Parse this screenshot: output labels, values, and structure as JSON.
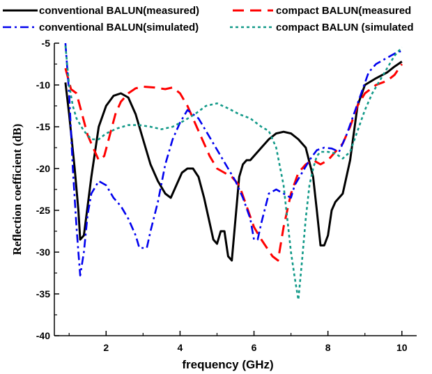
{
  "chart_data": {
    "type": "line",
    "title": "",
    "xlabel": "frequency (GHz)",
    "ylabel": "Reflection coefficient (dB)",
    "xlim": [
      0.6,
      10.4
    ],
    "ylim": [
      -40,
      -5
    ],
    "xticks": [
      2,
      4,
      6,
      8,
      10
    ],
    "yticks": [
      -5,
      -10,
      -15,
      -20,
      -25,
      -30,
      -35,
      -40
    ],
    "grid": false,
    "legend_position": "top",
    "series": [
      {
        "name": "conventional BALUN(measured)",
        "color": "#000000",
        "dash": "solid",
        "x": [
          0.9,
          1.0,
          1.15,
          1.25,
          1.3,
          1.4,
          1.6,
          1.8,
          2.0,
          2.2,
          2.4,
          2.6,
          2.8,
          3.0,
          3.2,
          3.4,
          3.6,
          3.75,
          3.9,
          4.05,
          4.2,
          4.35,
          4.5,
          4.65,
          4.8,
          4.9,
          5.0,
          5.1,
          5.2,
          5.3,
          5.4,
          5.5,
          5.6,
          5.7,
          5.8,
          5.9,
          6.0,
          6.2,
          6.4,
          6.6,
          6.8,
          7.0,
          7.2,
          7.4,
          7.6,
          7.7,
          7.8,
          7.9,
          8.0,
          8.1,
          8.2,
          8.4,
          8.6,
          8.8,
          9.0,
          9.3,
          9.6,
          9.8,
          10.0
        ],
        "y": [
          -9.7,
          -13.5,
          -20.0,
          -25.0,
          -28.5,
          -28.0,
          -21.0,
          -15.0,
          -12.5,
          -11.3,
          -11.0,
          -11.5,
          -13.5,
          -16.5,
          -19.5,
          -21.5,
          -23.0,
          -23.5,
          -22.0,
          -20.5,
          -20.0,
          -20.0,
          -21.0,
          -23.5,
          -26.5,
          -28.5,
          -29.0,
          -27.5,
          -27.5,
          -30.5,
          -31.0,
          -26.0,
          -21.0,
          -19.5,
          -19.0,
          -19.0,
          -18.5,
          -17.5,
          -16.5,
          -15.8,
          -15.6,
          -15.8,
          -16.5,
          -17.5,
          -21.0,
          -25.0,
          -29.2,
          -29.2,
          -28.0,
          -25.0,
          -24.0,
          -23.0,
          -19.0,
          -12.5,
          -10.0,
          -9.2,
          -8.5,
          -7.8,
          -7.2
        ]
      },
      {
        "name": "compact BALUN(measured",
        "color": "#ff0000",
        "dash": "long-dash",
        "x": [
          0.9,
          1.05,
          1.2,
          1.35,
          1.5,
          1.65,
          1.8,
          1.95,
          2.1,
          2.25,
          2.4,
          2.6,
          2.8,
          3.0,
          3.3,
          3.6,
          3.8,
          4.0,
          4.2,
          4.4,
          4.6,
          4.8,
          5.0,
          5.2,
          5.4,
          5.6,
          5.8,
          6.0,
          6.2,
          6.35,
          6.5,
          6.65,
          6.8,
          7.0,
          7.2,
          7.4,
          7.6,
          7.8,
          8.0,
          8.2,
          8.4,
          8.6,
          8.8,
          9.0,
          9.3,
          9.6,
          9.8,
          10.0
        ],
        "y": [
          -8.0,
          -10.5,
          -11.0,
          -13.5,
          -16.0,
          -17.5,
          -19.0,
          -18.5,
          -16.0,
          -13.5,
          -12.0,
          -11.0,
          -10.4,
          -10.2,
          -10.3,
          -10.5,
          -10.3,
          -11.0,
          -12.5,
          -14.5,
          -16.5,
          -18.5,
          -20.0,
          -20.5,
          -21.0,
          -22.0,
          -24.5,
          -27.0,
          -28.5,
          -29.5,
          -30.5,
          -31.0,
          -27.0,
          -23.0,
          -20.5,
          -19.5,
          -19.0,
          -19.5,
          -19.0,
          -18.0,
          -17.0,
          -15.0,
          -12.5,
          -11.0,
          -10.0,
          -9.5,
          -8.8,
          -7.5
        ]
      },
      {
        "name": "conventional BALUN(simulated)",
        "color": "#0000ee",
        "dash": "dash-dot",
        "x": [
          0.9,
          1.0,
          1.1,
          1.2,
          1.25,
          1.3,
          1.4,
          1.5,
          1.6,
          1.8,
          2.0,
          2.2,
          2.4,
          2.6,
          2.8,
          2.9,
          3.0,
          3.1,
          3.2,
          3.4,
          3.6,
          3.8,
          4.0,
          4.2,
          4.35,
          4.5,
          4.7,
          4.9,
          5.1,
          5.3,
          5.5,
          5.7,
          5.9,
          6.0,
          6.1,
          6.2,
          6.4,
          6.6,
          6.8,
          7.0,
          7.1,
          7.3,
          7.5,
          7.7,
          7.9,
          8.1,
          8.3,
          8.5,
          8.7,
          8.9,
          9.1,
          9.3,
          9.5,
          9.7,
          9.9,
          10.0
        ],
        "y": [
          -5.0,
          -11.0,
          -20.0,
          -27.0,
          -30.0,
          -32.8,
          -30.0,
          -25.5,
          -23.0,
          -21.5,
          -22.0,
          -23.5,
          -24.5,
          -26.0,
          -28.0,
          -29.5,
          -29.5,
          -29.5,
          -27.5,
          -24.0,
          -19.5,
          -16.5,
          -14.5,
          -13.0,
          -13.5,
          -14.0,
          -15.5,
          -17.0,
          -18.5,
          -20.0,
          -21.5,
          -23.5,
          -26.0,
          -28.5,
          -28.5,
          -26.5,
          -23.0,
          -22.5,
          -23.0,
          -23.5,
          -22.0,
          -20.5,
          -19.0,
          -17.8,
          -17.5,
          -17.6,
          -18.0,
          -16.0,
          -13.5,
          -11.0,
          -8.5,
          -7.5,
          -7.0,
          -6.5,
          -6.0,
          -6.0
        ]
      },
      {
        "name": "compact BALUN (simulated",
        "color": "#119988",
        "dash": "dotted",
        "x": [
          0.9,
          1.0,
          1.1,
          1.2,
          1.4,
          1.6,
          1.8,
          2.0,
          2.3,
          2.6,
          2.9,
          3.2,
          3.5,
          3.8,
          4.1,
          4.4,
          4.7,
          5.0,
          5.3,
          5.6,
          5.9,
          6.2,
          6.4,
          6.6,
          6.8,
          6.9,
          7.0,
          7.1,
          7.2,
          7.3,
          7.4,
          7.5,
          7.6,
          7.7,
          7.8,
          8.0,
          8.2,
          8.4,
          8.6,
          8.8,
          9.0,
          9.2,
          9.4,
          9.6,
          9.8,
          10.0
        ],
        "y": [
          -5.3,
          -10.0,
          -12.5,
          -14.0,
          -15.5,
          -16.5,
          -16.5,
          -15.8,
          -15.2,
          -14.8,
          -14.8,
          -15.0,
          -15.3,
          -15.0,
          -14.3,
          -13.5,
          -12.5,
          -12.2,
          -12.8,
          -13.5,
          -14.0,
          -15.0,
          -15.5,
          -17.5,
          -22.0,
          -26.0,
          -30.0,
          -33.0,
          -35.7,
          -31.0,
          -26.0,
          -22.0,
          -20.0,
          -18.5,
          -18.0,
          -18.0,
          -18.2,
          -18.8,
          -18.0,
          -15.5,
          -13.0,
          -11.0,
          -9.5,
          -8.0,
          -6.5,
          -5.5
        ]
      }
    ]
  }
}
